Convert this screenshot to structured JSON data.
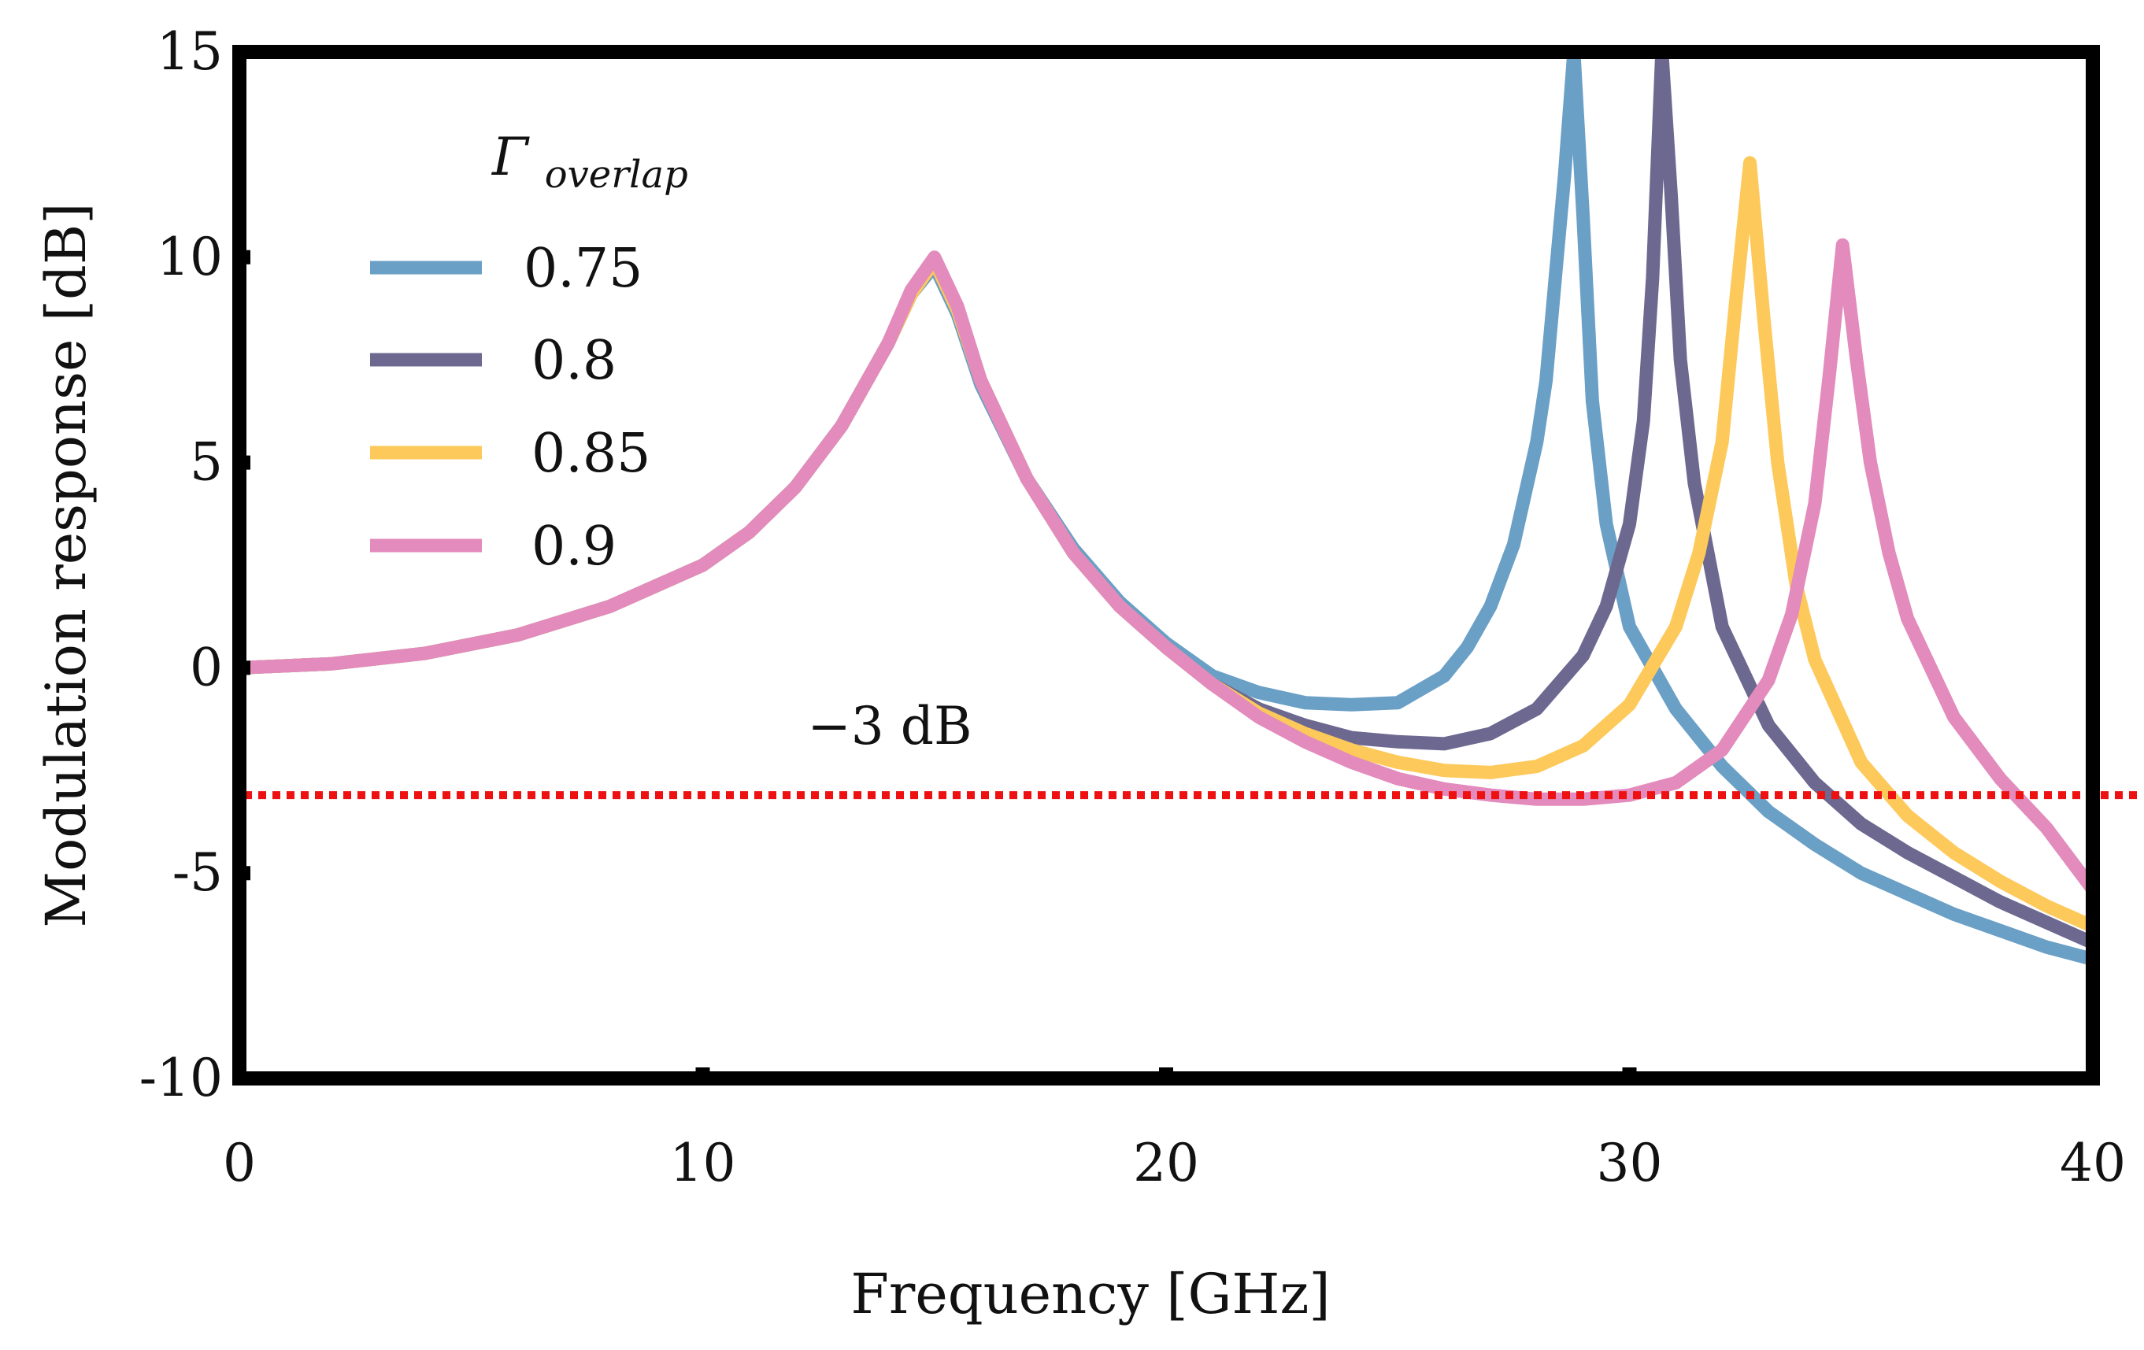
{
  "chart_data": {
    "type": "line",
    "xlabel": "Frequency [GHz]",
    "ylabel": "Modulation response [dB]",
    "xlim": [
      0,
      40
    ],
    "ylim": [
      -10,
      15
    ],
    "xticks": [
      0,
      10,
      20,
      30,
      40
    ],
    "xtick_labels": [
      "0",
      "10",
      "20",
      "30",
      "40"
    ],
    "yticks": [
      15,
      10,
      5,
      0,
      -5,
      -10
    ],
    "ytick_labels": [
      "15",
      "10",
      "5",
      "0",
      "-5",
      "-10"
    ],
    "grid": false,
    "legend": {
      "title_main": "Γ",
      "title_sub": "overlap",
      "placement": "top-left"
    },
    "annotation": {
      "text": "−3 dB",
      "y": -3.1,
      "color": "#ee1111"
    },
    "series": [
      {
        "name": "0.75",
        "color": "#6a9fc6",
        "x": [
          0,
          2,
          4,
          6,
          8,
          10,
          11,
          12,
          13,
          14,
          14.5,
          15,
          15.5,
          16,
          17,
          18,
          19,
          20,
          21,
          22,
          23,
          24,
          25,
          26,
          26.5,
          27,
          27.5,
          28,
          28.2,
          28.4,
          28.6,
          28.8,
          29,
          29.2,
          29.5,
          30,
          31,
          32,
          33,
          34,
          35,
          36,
          37,
          38,
          39,
          40
        ],
        "y": [
          0,
          0.1,
          0.35,
          0.8,
          1.5,
          2.5,
          3.3,
          4.4,
          5.9,
          7.9,
          9.1,
          9.8,
          8.6,
          6.9,
          4.6,
          2.9,
          1.6,
          0.6,
          -0.2,
          -0.6,
          -0.85,
          -0.9,
          -0.85,
          -0.2,
          0.5,
          1.5,
          3.0,
          5.5,
          7.0,
          9.5,
          12.0,
          15,
          11.0,
          6.5,
          3.5,
          1.0,
          -1.0,
          -2.4,
          -3.5,
          -4.3,
          -5.0,
          -5.5,
          -6.0,
          -6.4,
          -6.8,
          -7.1
        ]
      },
      {
        "name": "0.8",
        "color": "#6c6890",
        "x": [
          0,
          2,
          4,
          6,
          8,
          10,
          11,
          12,
          13,
          14,
          14.5,
          15,
          15.5,
          16,
          17,
          18,
          19,
          20,
          21,
          22,
          23,
          24,
          25,
          26,
          27,
          28,
          29,
          29.5,
          30,
          30.3,
          30.5,
          30.7,
          30.9,
          31.1,
          31.4,
          32,
          33,
          34,
          35,
          36,
          37,
          38,
          39,
          40
        ],
        "y": [
          0,
          0.1,
          0.35,
          0.8,
          1.5,
          2.5,
          3.3,
          4.4,
          5.9,
          7.9,
          9.1,
          9.9,
          8.7,
          7.0,
          4.6,
          2.8,
          1.5,
          0.5,
          -0.4,
          -1.0,
          -1.4,
          -1.7,
          -1.8,
          -1.85,
          -1.6,
          -1.0,
          0.3,
          1.5,
          3.5,
          6.0,
          9.5,
          15,
          11.5,
          7.5,
          4.5,
          1.0,
          -1.4,
          -2.8,
          -3.8,
          -4.5,
          -5.1,
          -5.7,
          -6.2,
          -6.7
        ]
      },
      {
        "name": "0.85",
        "color": "#fdc95a",
        "x": [
          0,
          2,
          4,
          6,
          8,
          10,
          11,
          12,
          13,
          14,
          14.5,
          15,
          15.5,
          16,
          17,
          18,
          19,
          20,
          21,
          22,
          23,
          24,
          25,
          26,
          27,
          28,
          29,
          30,
          31,
          31.5,
          32,
          32.3,
          32.6,
          32.9,
          33.2,
          33.6,
          34,
          35,
          36,
          37,
          38,
          39,
          40
        ],
        "y": [
          0,
          0.1,
          0.35,
          0.8,
          1.5,
          2.5,
          3.3,
          4.4,
          5.9,
          7.9,
          9.1,
          9.9,
          8.7,
          7.0,
          4.6,
          2.8,
          1.5,
          0.5,
          -0.4,
          -1.1,
          -1.6,
          -2.0,
          -2.3,
          -2.5,
          -2.55,
          -2.4,
          -1.9,
          -0.9,
          1.0,
          2.8,
          5.5,
          9.0,
          12.3,
          8.5,
          5.0,
          2.0,
          0.2,
          -2.3,
          -3.6,
          -4.5,
          -5.2,
          -5.8,
          -6.3
        ]
      },
      {
        "name": "0.9",
        "color": "#e28bbc",
        "x": [
          0,
          2,
          4,
          6,
          8,
          10,
          11,
          12,
          13,
          14,
          14.5,
          15,
          15.5,
          16,
          17,
          18,
          19,
          20,
          21,
          22,
          23,
          24,
          25,
          26,
          27,
          28,
          29,
          30,
          31,
          32,
          33,
          33.5,
          34,
          34.3,
          34.6,
          34.9,
          35.2,
          35.6,
          36,
          37,
          38,
          39,
          40
        ],
        "y": [
          0,
          0.1,
          0.35,
          0.8,
          1.5,
          2.5,
          3.3,
          4.4,
          5.9,
          7.9,
          9.2,
          10.0,
          8.8,
          7.0,
          4.6,
          2.8,
          1.5,
          0.5,
          -0.4,
          -1.2,
          -1.8,
          -2.3,
          -2.7,
          -2.95,
          -3.1,
          -3.2,
          -3.2,
          -3.1,
          -2.8,
          -2.0,
          -0.3,
          1.3,
          4.0,
          7.0,
          10.3,
          7.5,
          5.0,
          2.8,
          1.2,
          -1.2,
          -2.7,
          -3.9,
          -5.4
        ]
      }
    ]
  }
}
